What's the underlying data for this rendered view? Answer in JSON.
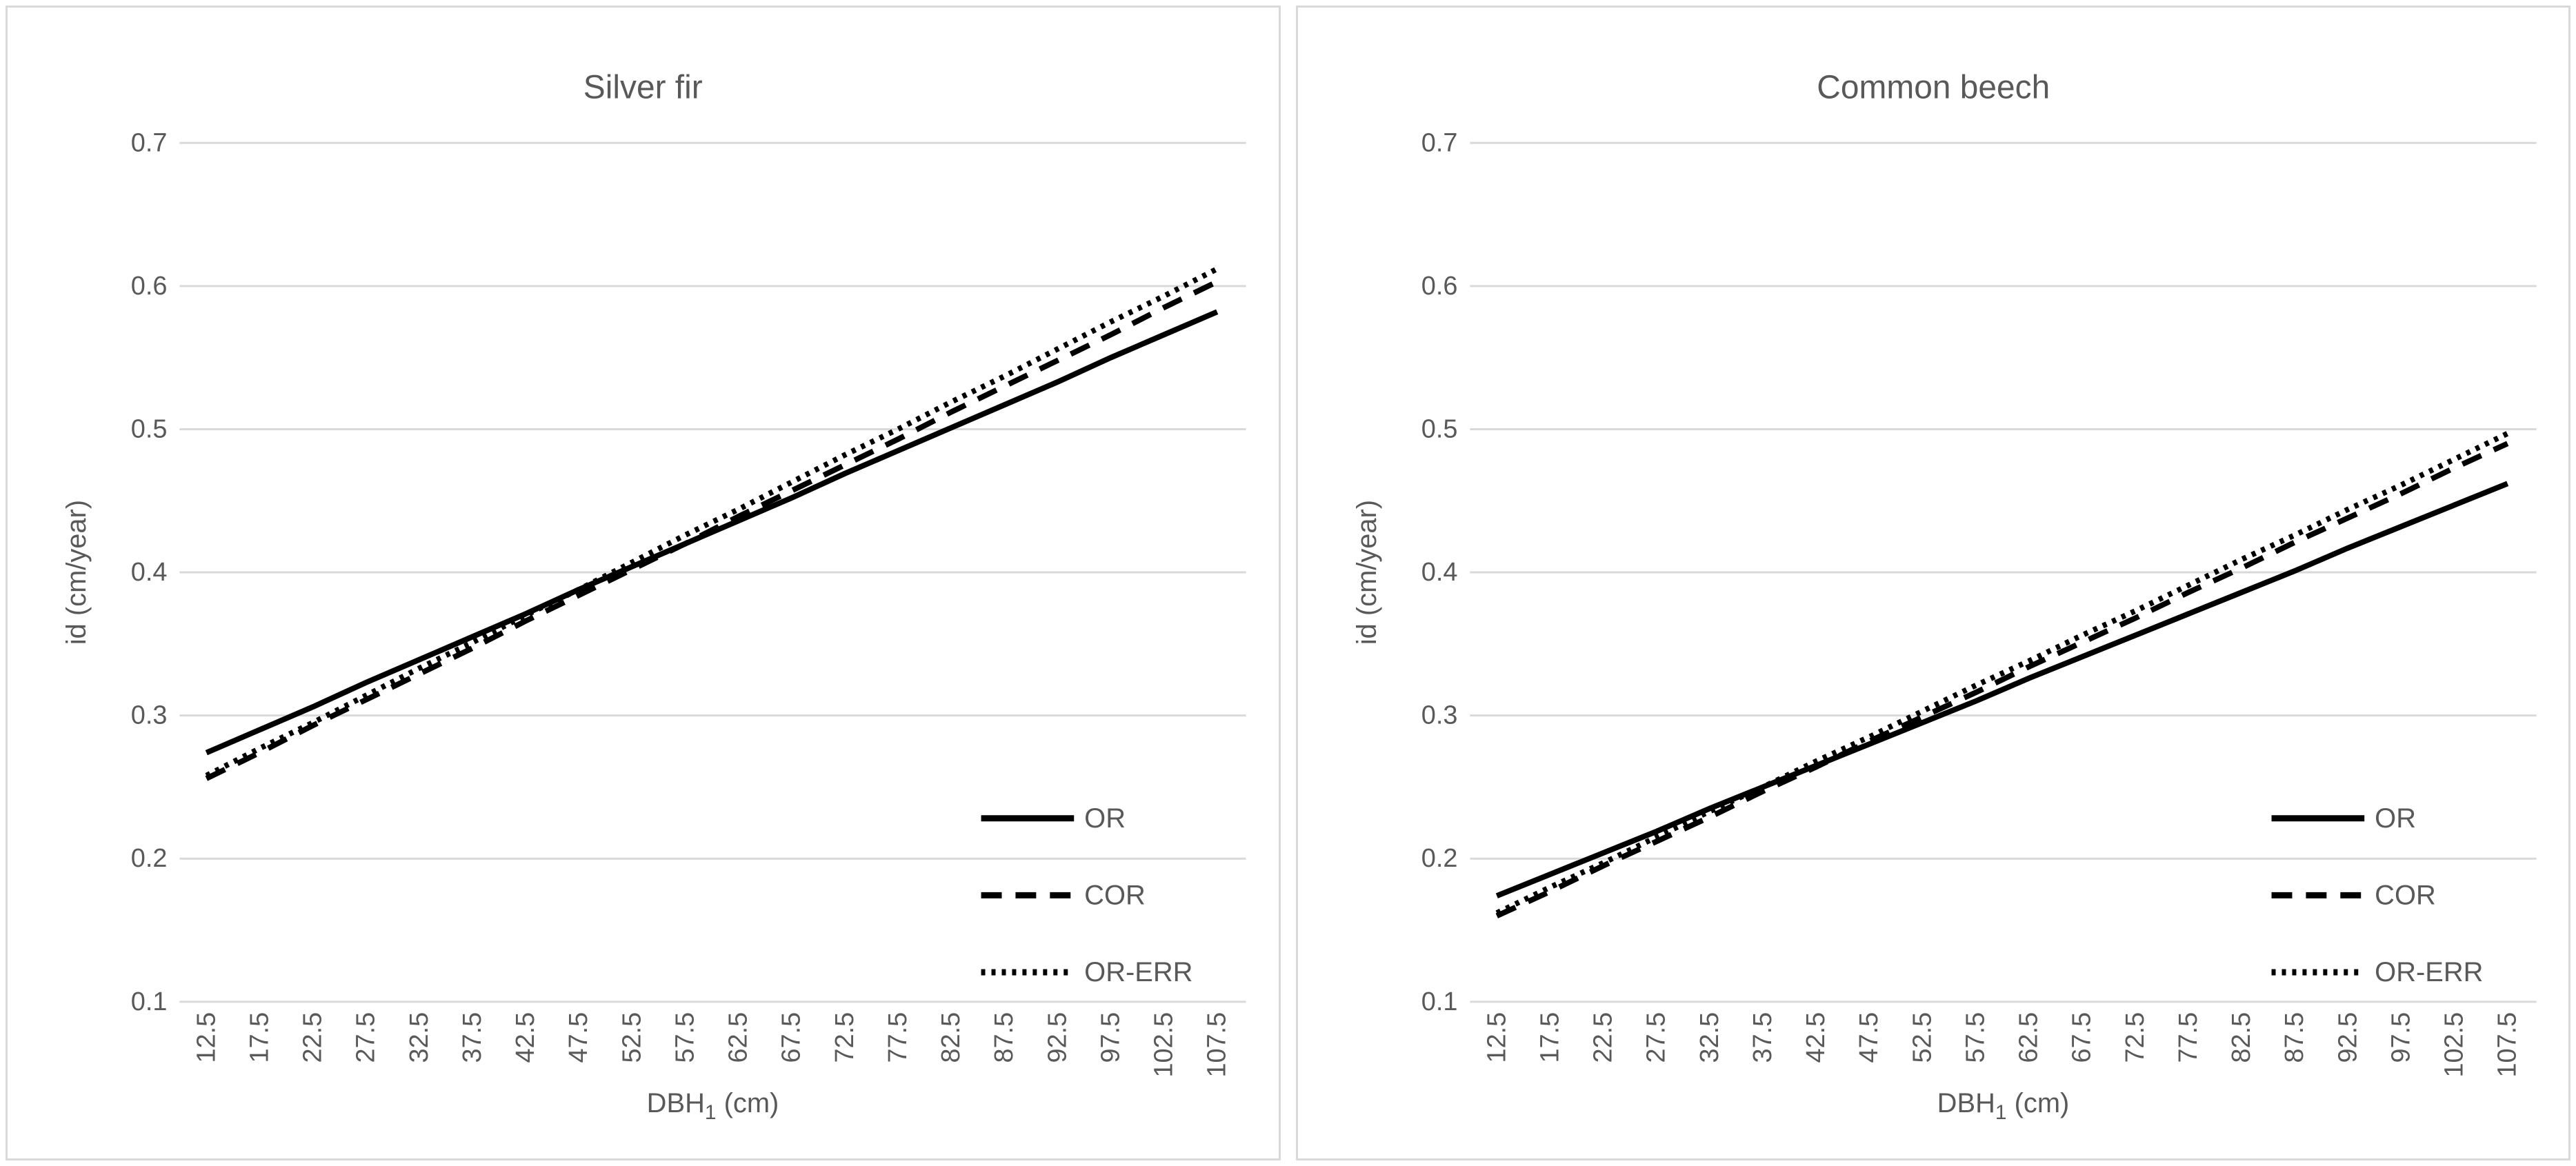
{
  "figure": {
    "description": "Two-panel line chart figure comparing diameter increment models",
    "panels": [
      "Silver fir",
      "Common beech"
    ]
  },
  "colors": {
    "line": "#000000",
    "grid": "#d9d9d9",
    "border": "#d9d9d9",
    "text": "#595959",
    "background": "#ffffff"
  },
  "chart_data": [
    {
      "type": "line",
      "title": "Silver fir",
      "ylabel": "id (cm/year)",
      "xlabel": {
        "base": "DBH",
        "sub": "1",
        "rest": " (cm)"
      },
      "ylim": [
        0.1,
        0.7
      ],
      "grid": true,
      "legend_position": "inside-right",
      "ytick_labels": [
        "0.7",
        "0.6",
        "0.5",
        "0.4",
        "0.3",
        "0.2",
        "0.1"
      ],
      "categories": [
        "12.5",
        "17.5",
        "22.5",
        "27.5",
        "32.5",
        "37.5",
        "42.5",
        "47.5",
        "52.5",
        "57.5",
        "62.5",
        "67.5",
        "72.5",
        "77.5",
        "82.5",
        "87.5",
        "92.5",
        "97.5",
        "102.5",
        "107.5"
      ],
      "series": [
        {
          "name": "OR",
          "line_style": "solid",
          "values": [
            0.274,
            0.29,
            0.306,
            0.323,
            0.339,
            0.355,
            0.371,
            0.388,
            0.404,
            0.42,
            0.436,
            0.452,
            0.469,
            0.485,
            0.501,
            0.517,
            0.533,
            0.55,
            0.566,
            0.582
          ]
        },
        {
          "name": "COR",
          "line_style": "dashed",
          "values": [
            0.256,
            0.274,
            0.293,
            0.311,
            0.329,
            0.347,
            0.366,
            0.384,
            0.402,
            0.42,
            0.439,
            0.457,
            0.475,
            0.493,
            0.512,
            0.53,
            0.548,
            0.566,
            0.585,
            0.603
          ]
        },
        {
          "name": "OR-ERR",
          "line_style": "dotted",
          "values": [
            0.258,
            0.277,
            0.295,
            0.314,
            0.333,
            0.351,
            0.37,
            0.388,
            0.407,
            0.426,
            0.444,
            0.463,
            0.482,
            0.5,
            0.519,
            0.537,
            0.556,
            0.575,
            0.593,
            0.612
          ]
        }
      ]
    },
    {
      "type": "line",
      "title": "Common beech",
      "ylabel": "id (cm/year)",
      "xlabel": {
        "base": "DBH",
        "sub": "1",
        "rest": " (cm)"
      },
      "ylim": [
        0.1,
        0.7
      ],
      "grid": true,
      "legend_position": "inside-right",
      "ytick_labels": [
        "0.7",
        "0.6",
        "0.5",
        "0.4",
        "0.3",
        "0.2",
        "0.1"
      ],
      "categories": [
        "12.5",
        "17.5",
        "22.5",
        "27.5",
        "32.5",
        "37.5",
        "42.5",
        "47.5",
        "52.5",
        "57.5",
        "62.5",
        "67.5",
        "72.5",
        "77.5",
        "82.5",
        "87.5",
        "92.5",
        "97.5",
        "102.5",
        "107.5"
      ],
      "series": [
        {
          "name": "OR",
          "line_style": "solid",
          "values": [
            0.174,
            0.189,
            0.204,
            0.219,
            0.235,
            0.25,
            0.265,
            0.28,
            0.295,
            0.31,
            0.326,
            0.341,
            0.356,
            0.371,
            0.386,
            0.401,
            0.417,
            0.432,
            0.447,
            0.462
          ]
        },
        {
          "name": "COR",
          "line_style": "dashed",
          "values": [
            0.16,
            0.177,
            0.195,
            0.212,
            0.229,
            0.247,
            0.264,
            0.282,
            0.299,
            0.316,
            0.334,
            0.351,
            0.368,
            0.386,
            0.403,
            0.421,
            0.438,
            0.455,
            0.473,
            0.49
          ]
        },
        {
          "name": "OR-ERR",
          "line_style": "dotted",
          "values": [
            0.162,
            0.18,
            0.197,
            0.215,
            0.233,
            0.25,
            0.268,
            0.285,
            0.303,
            0.321,
            0.338,
            0.356,
            0.373,
            0.391,
            0.409,
            0.426,
            0.444,
            0.461,
            0.479,
            0.497
          ]
        }
      ]
    }
  ]
}
